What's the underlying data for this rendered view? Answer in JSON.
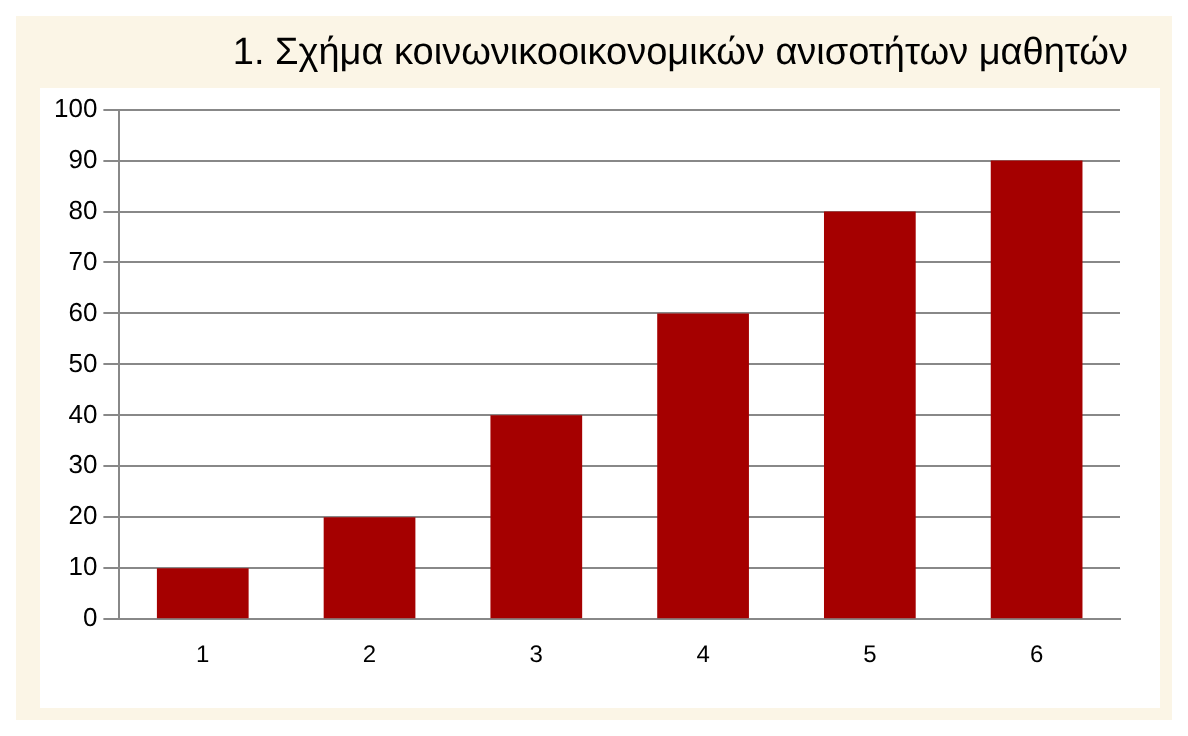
{
  "chart_data": {
    "type": "bar",
    "title": "1.  Σχήμα κοινωνικοοικονομικών ανισοτήτων μαθητών",
    "categories": [
      "1",
      "2",
      "3",
      "4",
      "5",
      "6"
    ],
    "values": [
      10,
      20,
      40,
      60,
      80,
      90
    ],
    "color": "#a50000",
    "ylim": [
      0,
      100
    ],
    "yticks": [
      0,
      10,
      20,
      30,
      40,
      50,
      60,
      70,
      80,
      90,
      100
    ],
    "grid": "y"
  }
}
